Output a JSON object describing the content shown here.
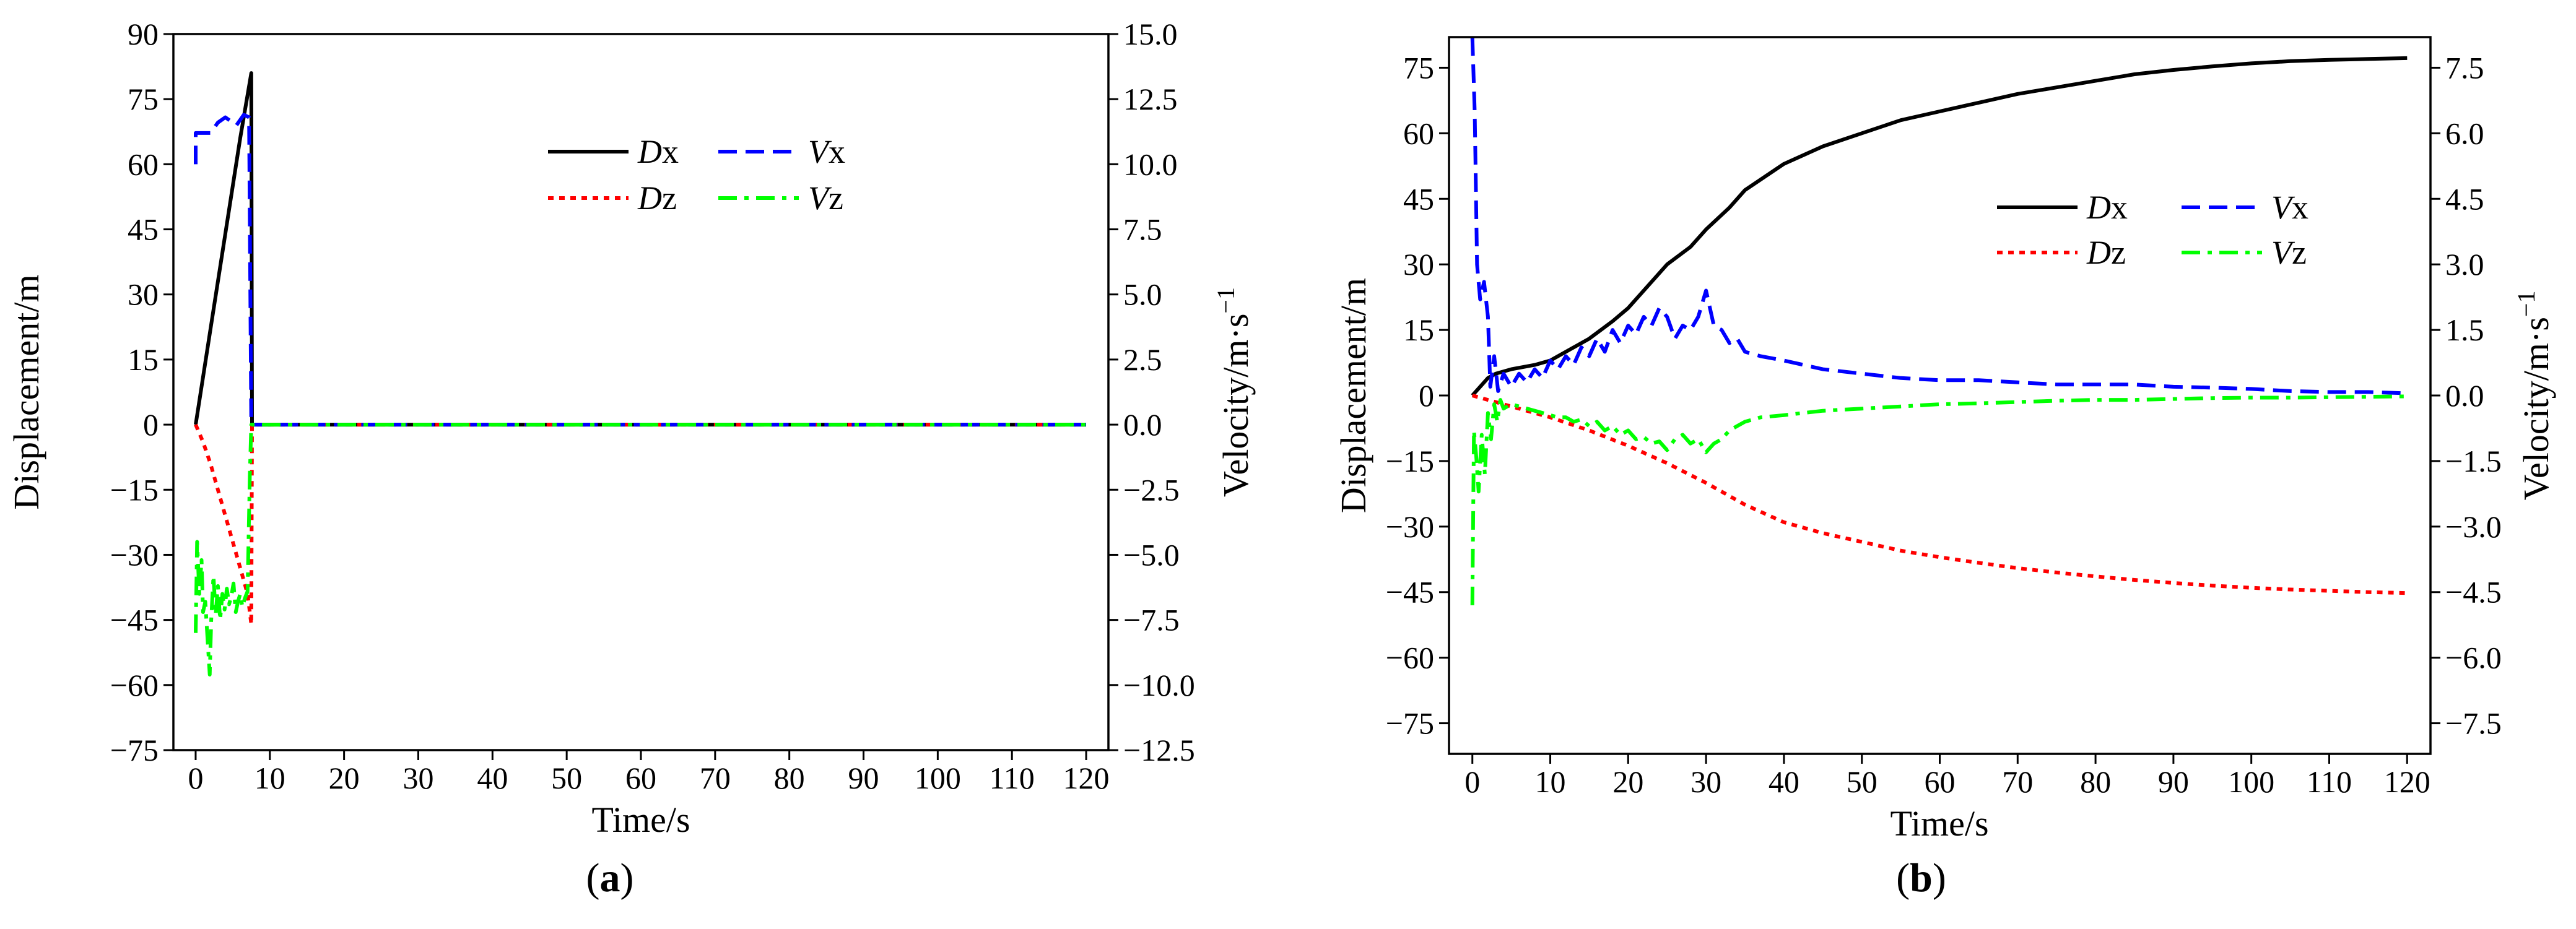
{
  "colors": {
    "Dx": "#000000",
    "Dz": "#ff0000",
    "Vx": "#0000ff",
    "Vz": "#00ff00"
  },
  "chart_data": [
    {
      "type": "line",
      "panel_label": {
        "open": "(",
        "letter": "a",
        "close": ")"
      },
      "xlabel": "Time/s",
      "ylabel": "Displacement/m",
      "y2label": {
        "text": "Velocity/m·s",
        "sup": "−1"
      },
      "xlim": [
        -3,
        123
      ],
      "ylim": [
        -75,
        90
      ],
      "y2lim": [
        -12.5,
        15
      ],
      "xticks": [
        "0",
        "10",
        "20",
        "30",
        "40",
        "50",
        "60",
        "70",
        "80",
        "90",
        "100",
        "110",
        "120"
      ],
      "yticks": [
        "−75",
        "−60",
        "−45",
        "−30",
        "−15",
        "0",
        "15",
        "30",
        "45",
        "60",
        "75",
        "90"
      ],
      "y2ticks": [
        "−12.5",
        "−10.0",
        "−7.5",
        "−5.0",
        "−2.5",
        "0.0",
        "2.5",
        "5.0",
        "7.5",
        "10.0",
        "12.5",
        "15.0"
      ],
      "legend": [
        {
          "key": "Dx",
          "italic": "D",
          "sub": "x",
          "style": "solid"
        },
        {
          "key": "Vx",
          "italic": "V",
          "sub": "x",
          "style": "dash"
        },
        {
          "key": "Dz",
          "italic": "D",
          "sub": "z",
          "style": "dot"
        },
        {
          "key": "Vz",
          "italic": "V",
          "sub": "z",
          "style": "dashdot"
        }
      ],
      "series": [
        {
          "name": "Dx",
          "axis": "left",
          "x": [
            0,
            2,
            4,
            6,
            7.5,
            7.6,
            120
          ],
          "y": [
            0,
            22,
            44,
            66,
            81,
            0,
            0
          ]
        },
        {
          "name": "Dz",
          "axis": "left",
          "x": [
            0,
            1,
            2,
            3,
            4,
            5,
            6,
            7,
            7.5,
            7.6,
            120
          ],
          "y": [
            0,
            -4,
            -9,
            -15,
            -21,
            -27,
            -33,
            -39,
            -46,
            0,
            0
          ]
        },
        {
          "name": "Vx",
          "axis": "right",
          "x": [
            0,
            0,
            0.5,
            2,
            3,
            4,
            4.5,
            5.5,
            6.5,
            7.2,
            7.5,
            7.6,
            120
          ],
          "y": [
            10,
            11.2,
            11.2,
            11.2,
            11.6,
            11.8,
            11.7,
            11.5,
            11.9,
            11.8,
            0,
            0,
            0
          ]
        },
        {
          "name": "Vz",
          "axis": "right",
          "x": [
            0,
            0.2,
            0.5,
            0.8,
            1,
            1.3,
            1.6,
            1.9,
            2.1,
            2.4,
            2.7,
            3,
            3.3,
            3.6,
            3.9,
            4.2,
            4.5,
            4.8,
            5.1,
            5.4,
            5.7,
            6,
            6.3,
            6.6,
            7,
            7.3,
            7.5,
            7.6,
            120
          ],
          "y": [
            -8,
            -4.5,
            -6.5,
            -5.2,
            -7.2,
            -6.8,
            -8.2,
            -9.6,
            -7.5,
            -5.8,
            -7.3,
            -6.2,
            -7.5,
            -6.5,
            -7.1,
            -6.3,
            -6.9,
            -6.6,
            -6.1,
            -7.2,
            -6.8,
            -6.5,
            -7.0,
            -6.7,
            -6.4,
            -2.0,
            0,
            0,
            0
          ]
        }
      ]
    },
    {
      "type": "line",
      "panel_label": {
        "open": "(",
        "letter": "b",
        "close": ")"
      },
      "xlabel": "Time/s",
      "ylabel": "Displacement/m",
      "y2label": {
        "text": "Velocity/m·s",
        "sup": "−1"
      },
      "xlim": [
        -3,
        123
      ],
      "ylim": [
        -82,
        82
      ],
      "y2lim": [
        -8.2,
        8.2
      ],
      "xticks": [
        "0",
        "10",
        "20",
        "30",
        "40",
        "50",
        "60",
        "70",
        "80",
        "90",
        "100",
        "110",
        "120"
      ],
      "yticks": [
        "−75",
        "−60",
        "−45",
        "−30",
        "−15",
        "0",
        "15",
        "30",
        "45",
        "60",
        "75"
      ],
      "y2ticks": [
        "−7.5",
        "−6.0",
        "−4.5",
        "−3.0",
        "−1.5",
        "0.0",
        "1.5",
        "3.0",
        "4.5",
        "6.0",
        "7.5"
      ],
      "legend": [
        {
          "key": "Dx",
          "italic": "D",
          "sub": "x",
          "style": "solid"
        },
        {
          "key": "Vx",
          "italic": "V",
          "sub": "x",
          "style": "dash"
        },
        {
          "key": "Dz",
          "italic": "D",
          "sub": "z",
          "style": "dot"
        },
        {
          "key": "Vz",
          "italic": "V",
          "sub": "z",
          "style": "dashdot"
        }
      ],
      "series": [
        {
          "name": "Dx",
          "axis": "left",
          "x": [
            0,
            1,
            2,
            3,
            5,
            8,
            10,
            12,
            15,
            18,
            20,
            22,
            25,
            28,
            30,
            33,
            35,
            40,
            45,
            50,
            55,
            60,
            65,
            70,
            75,
            80,
            85,
            90,
            95,
            100,
            105,
            110,
            115,
            120
          ],
          "y": [
            0,
            2,
            4,
            5,
            6,
            7,
            8,
            10,
            13,
            17,
            20,
            24,
            30,
            34,
            38,
            43,
            47,
            53,
            57,
            60,
            63,
            65,
            67,
            69,
            70.5,
            72,
            73.5,
            74.5,
            75.3,
            76,
            76.5,
            76.8,
            77,
            77.2
          ]
        },
        {
          "name": "Dz",
          "axis": "left",
          "x": [
            0,
            2,
            5,
            10,
            15,
            20,
            25,
            30,
            35,
            40,
            45,
            50,
            55,
            60,
            65,
            70,
            75,
            80,
            85,
            90,
            95,
            100,
            105,
            110,
            115,
            120
          ],
          "y": [
            0,
            -1,
            -2.5,
            -5,
            -8,
            -11.5,
            -15.5,
            -20,
            -25,
            -29,
            -31.5,
            -33.5,
            -35.5,
            -37,
            -38.3,
            -39.5,
            -40.5,
            -41.4,
            -42.2,
            -42.9,
            -43.5,
            -44,
            -44.4,
            -44.7,
            -45,
            -45.2
          ]
        },
        {
          "name": "Vx",
          "axis": "right",
          "x": [
            0,
            0.3,
            0.6,
            1,
            1.5,
            2,
            2.3,
            2.8,
            3.3,
            4,
            5,
            6,
            7,
            8,
            9,
            10,
            11,
            12,
            13,
            14,
            15,
            16,
            17,
            18,
            19,
            20,
            21,
            22,
            23,
            24,
            25,
            26,
            27,
            28,
            29,
            30,
            31,
            32,
            33,
            34,
            35,
            37,
            40,
            45,
            50,
            55,
            60,
            65,
            70,
            75,
            80,
            85,
            90,
            95,
            100,
            105,
            110,
            115,
            120
          ],
          "y": [
            8.2,
            6.5,
            3.0,
            2.2,
            2.6,
            1.8,
            0.2,
            0.9,
            0.1,
            0.5,
            0.2,
            0.5,
            0.3,
            0.6,
            0.4,
            0.8,
            0.6,
            0.9,
            0.7,
            1.1,
            0.9,
            1.3,
            1.0,
            1.5,
            1.2,
            1.6,
            1.4,
            1.8,
            1.6,
            2.0,
            1.8,
            1.3,
            1.6,
            1.5,
            1.8,
            2.4,
            1.6,
            1.5,
            1.2,
            1.3,
            1.0,
            0.9,
            0.8,
            0.6,
            0.5,
            0.4,
            0.35,
            0.35,
            0.3,
            0.25,
            0.25,
            0.25,
            0.2,
            0.18,
            0.15,
            0.1,
            0.08,
            0.08,
            0.05
          ]
        },
        {
          "name": "Vz",
          "axis": "right",
          "x": [
            0,
            0.2,
            0.5,
            0.8,
            1.2,
            1.6,
            2.0,
            2.4,
            2.8,
            3.2,
            3.6,
            4,
            5,
            6,
            7,
            8,
            9,
            10,
            11,
            12,
            13,
            14,
            15,
            16,
            17,
            18,
            19,
            20,
            21,
            22,
            23,
            24,
            25,
            26,
            27,
            28,
            29,
            30,
            31,
            32,
            33,
            34,
            35,
            37,
            40,
            45,
            50,
            55,
            60,
            65,
            70,
            75,
            80,
            85,
            90,
            95,
            100,
            105,
            110,
            115,
            120
          ],
          "y": [
            -4.8,
            -0.8,
            -1.4,
            -2.2,
            -0.9,
            -1.8,
            -0.4,
            -1.0,
            -0.2,
            -0.6,
            -0.1,
            -0.3,
            -0.2,
            -0.25,
            -0.3,
            -0.35,
            -0.4,
            -0.45,
            -0.5,
            -0.5,
            -0.6,
            -0.55,
            -0.7,
            -0.6,
            -0.8,
            -0.7,
            -0.9,
            -0.8,
            -1.0,
            -0.95,
            -1.1,
            -1.05,
            -1.25,
            -1.0,
            -0.9,
            -1.1,
            -1.0,
            -1.3,
            -1.1,
            -1.0,
            -0.8,
            -0.7,
            -0.6,
            -0.5,
            -0.45,
            -0.35,
            -0.3,
            -0.25,
            -0.2,
            -0.18,
            -0.15,
            -0.12,
            -0.1,
            -0.1,
            -0.08,
            -0.06,
            -0.05,
            -0.05,
            -0.04,
            -0.03,
            -0.02
          ]
        }
      ]
    }
  ]
}
